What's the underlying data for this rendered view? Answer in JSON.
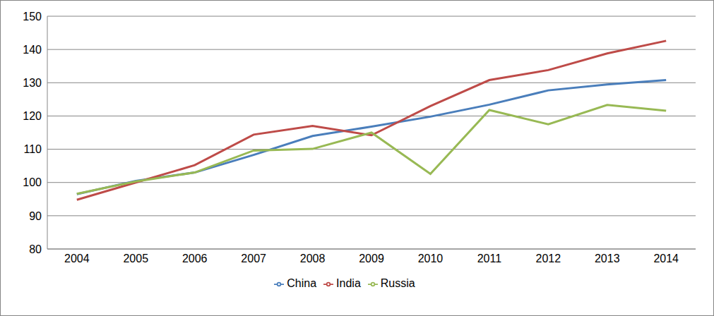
{
  "chart_data": {
    "type": "line",
    "categories": [
      "2004",
      "2005",
      "2006",
      "2007",
      "2008",
      "2009",
      "2010",
      "2011",
      "2012",
      "2013",
      "2014"
    ],
    "series": [
      {
        "name": "China",
        "color": "#4a7ebb",
        "values": [
          96.5,
          100.5,
          103,
          108.3,
          114,
          116.8,
          119.8,
          123.4,
          127.7,
          129.5,
          130.8
        ]
      },
      {
        "name": "India",
        "color": "#be4b48",
        "values": [
          94.8,
          100,
          105.2,
          114.4,
          117,
          114.2,
          123,
          130.8,
          133.8,
          138.8,
          142.6
        ]
      },
      {
        "name": "Russia",
        "color": "#98b954",
        "values": [
          96.6,
          100.3,
          103,
          109.6,
          110.1,
          115,
          102.6,
          121.8,
          117.5,
          123.3,
          121.6
        ]
      }
    ],
    "ylim": [
      80,
      150
    ],
    "yticks": [
      80,
      90,
      100,
      110,
      120,
      130,
      140,
      150
    ],
    "grid": true,
    "legend": "bottom",
    "marker": "none"
  }
}
